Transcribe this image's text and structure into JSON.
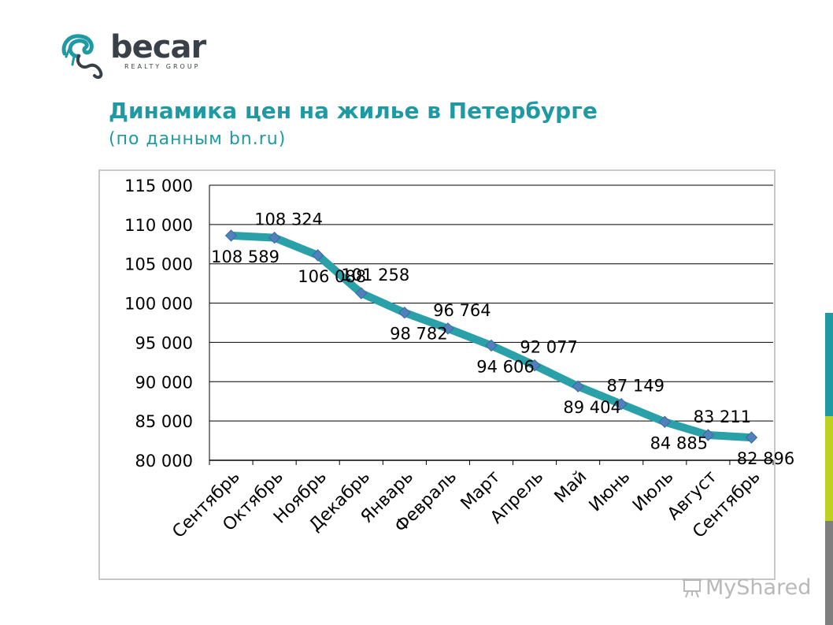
{
  "logo": {
    "word": "becar",
    "sub": "REALTY GROUP"
  },
  "header": {
    "title": "Динамика цен на жилье в Петербурге",
    "subtitle": "(по данным bn.ru)"
  },
  "watermark": {
    "text": "MyShared",
    "icon": "presentation-board-icon"
  },
  "colors": {
    "title": "#1f9aa3",
    "line": "#2aa0a8",
    "marker": "#4f81bd",
    "grid": "#000000",
    "accent_1": "#1f9aa3",
    "accent_2": "#bcd21f",
    "accent_3": "#7f7f7f"
  },
  "chart_data": {
    "type": "line",
    "categories": [
      "Сентябрь",
      "Октябрь",
      "Ноябрь",
      "Декабрь",
      "Январь",
      "Февраль",
      "Март",
      "Апрель",
      "Май",
      "Июнь",
      "Июль",
      "Август",
      "Сентябрь"
    ],
    "series": [
      {
        "values": [
          108589,
          108324,
          106088,
          101258,
          98782,
          96764,
          94606,
          92077,
          89404,
          87149,
          84885,
          83211,
          82896
        ]
      }
    ],
    "data_labels": [
      "108 589",
      "108 324",
      "106 088",
      "101 258",
      "98 782",
      "96 764",
      "94 606",
      "92 077",
      "89 404",
      "87 149",
      "84 885",
      "83 211",
      "82 896"
    ],
    "data_label_positions": [
      "below",
      "above",
      "below",
      "above",
      "below",
      "above",
      "below",
      "above",
      "below",
      "above",
      "below",
      "above",
      "below"
    ],
    "y_ticks": [
      80000,
      85000,
      90000,
      95000,
      100000,
      105000,
      110000,
      115000
    ],
    "y_tick_labels": [
      "80 000",
      "85 000",
      "90 000",
      "95 000",
      "100 000",
      "105 000",
      "110 000",
      "115 000"
    ],
    "ylim": [
      80000,
      115000
    ],
    "grid": true,
    "legend": "none"
  }
}
